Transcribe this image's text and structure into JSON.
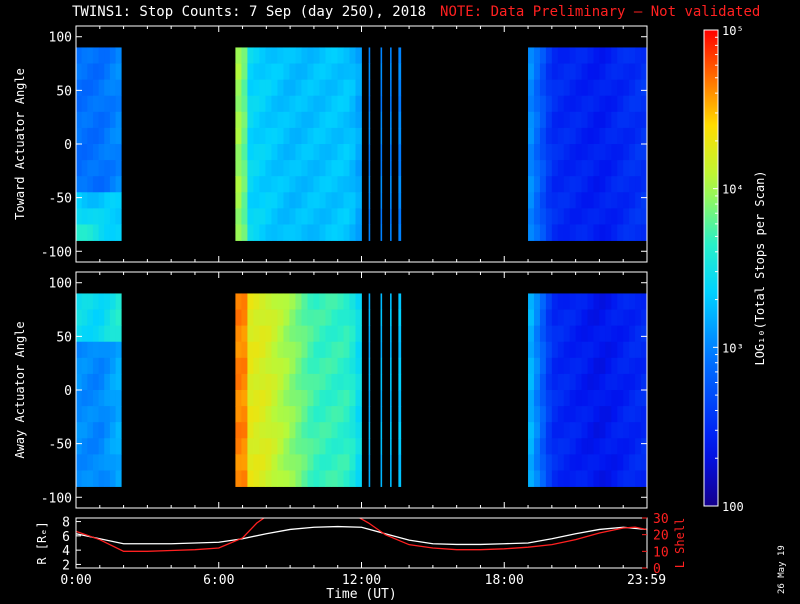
{
  "title": "TWINS1: Stop Counts:  7 Sep (day 250), 2018",
  "note": "NOTE: Data Preliminary – Not validated",
  "date_stamp": "26 May 19",
  "colors": {
    "note": "#ff2020",
    "l_shell": "#ff2020",
    "r_line": "#ffffff",
    "frame": "#ffffff",
    "background": "#000000"
  },
  "chart_data": [
    {
      "type": "heatmap",
      "ylabel": "Toward Actuator Angle",
      "ylim": [
        -110,
        110
      ],
      "yticks": [
        "100",
        "50",
        "0",
        "-50",
        "-100"
      ],
      "ytick_values": [
        100,
        50,
        0,
        -50,
        -100
      ],
      "xlim_hours": [
        0,
        24
      ],
      "data_angle_range": [
        -90,
        90
      ],
      "data_intervals_hours": [
        [
          0.0,
          1.9
        ],
        [
          6.7,
          12.0
        ],
        [
          12.3,
          12.35
        ],
        [
          12.8,
          12.85
        ],
        [
          13.2,
          13.25
        ],
        [
          13.55,
          13.65
        ],
        [
          19.0,
          24.0
        ]
      ],
      "log_level_by_hour": [
        [
          0,
          2.9
        ],
        [
          1,
          2.9
        ],
        [
          6.7,
          3.7
        ],
        [
          7.2,
          3.4
        ],
        [
          9,
          3.25
        ],
        [
          11.5,
          3.3
        ],
        [
          12.3,
          3.0
        ],
        [
          13.6,
          3.0
        ],
        [
          19,
          3.1
        ],
        [
          20,
          2.5
        ],
        [
          22,
          2.4
        ],
        [
          24,
          2.55
        ]
      ]
    },
    {
      "type": "heatmap",
      "ylabel": "Away Actuator Angle",
      "ylim": [
        -110,
        110
      ],
      "yticks": [
        "100",
        "50",
        "0",
        "-50",
        "-100"
      ],
      "ytick_values": [
        100,
        50,
        0,
        -50,
        -100
      ],
      "xlim_hours": [
        0,
        24
      ],
      "data_angle_range": [
        -90,
        90
      ],
      "data_intervals_hours": [
        [
          0.0,
          1.9
        ],
        [
          6.7,
          12.0
        ],
        [
          12.3,
          12.35
        ],
        [
          12.8,
          12.85
        ],
        [
          13.2,
          13.25
        ],
        [
          13.55,
          13.65
        ],
        [
          19.0,
          24.0
        ]
      ],
      "log_level_by_hour": [
        [
          0,
          3.05
        ],
        [
          1,
          3.0
        ],
        [
          6.7,
          4.3
        ],
        [
          8,
          4.2
        ],
        [
          10,
          3.7
        ],
        [
          11.5,
          3.65
        ],
        [
          12.3,
          3.2
        ],
        [
          13.6,
          3.3
        ],
        [
          19,
          3.3
        ],
        [
          20,
          2.5
        ],
        [
          22,
          2.35
        ],
        [
          24,
          2.5
        ]
      ]
    },
    {
      "type": "line",
      "xlabel": "Time (UT)",
      "xticks": [
        "0:00",
        "6:00",
        "12:00",
        "18:00",
        "23:59"
      ],
      "xtick_hours": [
        0,
        6,
        12,
        18,
        23.98
      ],
      "ylabel_left": "R [Rₑ]",
      "ylim_left": [
        1.5,
        8.5
      ],
      "yticks_left": [
        "8",
        "6",
        "4",
        "2"
      ],
      "ytick_values_left": [
        8,
        6,
        4,
        2
      ],
      "ylabel_right": "L Shell",
      "ylim_right": [
        0,
        30
      ],
      "yticks_right": [
        "30",
        "20",
        "10",
        "0"
      ],
      "ytick_values_right": [
        30,
        20,
        10,
        0
      ],
      "series": [
        {
          "axis": "left",
          "x": [
            0,
            1,
            2,
            3,
            4,
            5,
            6,
            7,
            8,
            9,
            10,
            11,
            12,
            13,
            14,
            15,
            16,
            17,
            18,
            19,
            20,
            21,
            22,
            23,
            24
          ],
          "y": [
            6.3,
            5.6,
            4.9,
            4.9,
            4.9,
            5.0,
            5.1,
            5.6,
            6.3,
            6.9,
            7.2,
            7.3,
            7.2,
            6.3,
            5.4,
            4.9,
            4.8,
            4.8,
            4.9,
            5.0,
            5.6,
            6.3,
            6.9,
            7.2,
            6.9
          ]
        },
        {
          "axis": "right",
          "x": [
            0,
            1,
            2,
            3,
            4,
            5,
            6,
            7,
            7.6,
            8,
            11.8,
            12.3,
            13,
            14,
            15,
            16,
            17,
            18,
            19,
            20,
            21,
            22,
            23,
            23.5,
            24
          ],
          "y": [
            22,
            17,
            10,
            10,
            10.5,
            11,
            12,
            18,
            27,
            31,
            31,
            27,
            20,
            14,
            12,
            11,
            11,
            11.5,
            12.5,
            14,
            17,
            21,
            24,
            24.5,
            23
          ]
        }
      ]
    },
    {
      "type": "heatmap",
      "role": "colorbar",
      "ylabel": "LOG₁₀(Total Stops per Scan)",
      "ticks": [
        "10⁵",
        "10⁴",
        "10³",
        "100"
      ],
      "tick_values": [
        100000,
        10000,
        1000,
        100
      ],
      "range_log10": [
        2,
        5
      ]
    }
  ]
}
